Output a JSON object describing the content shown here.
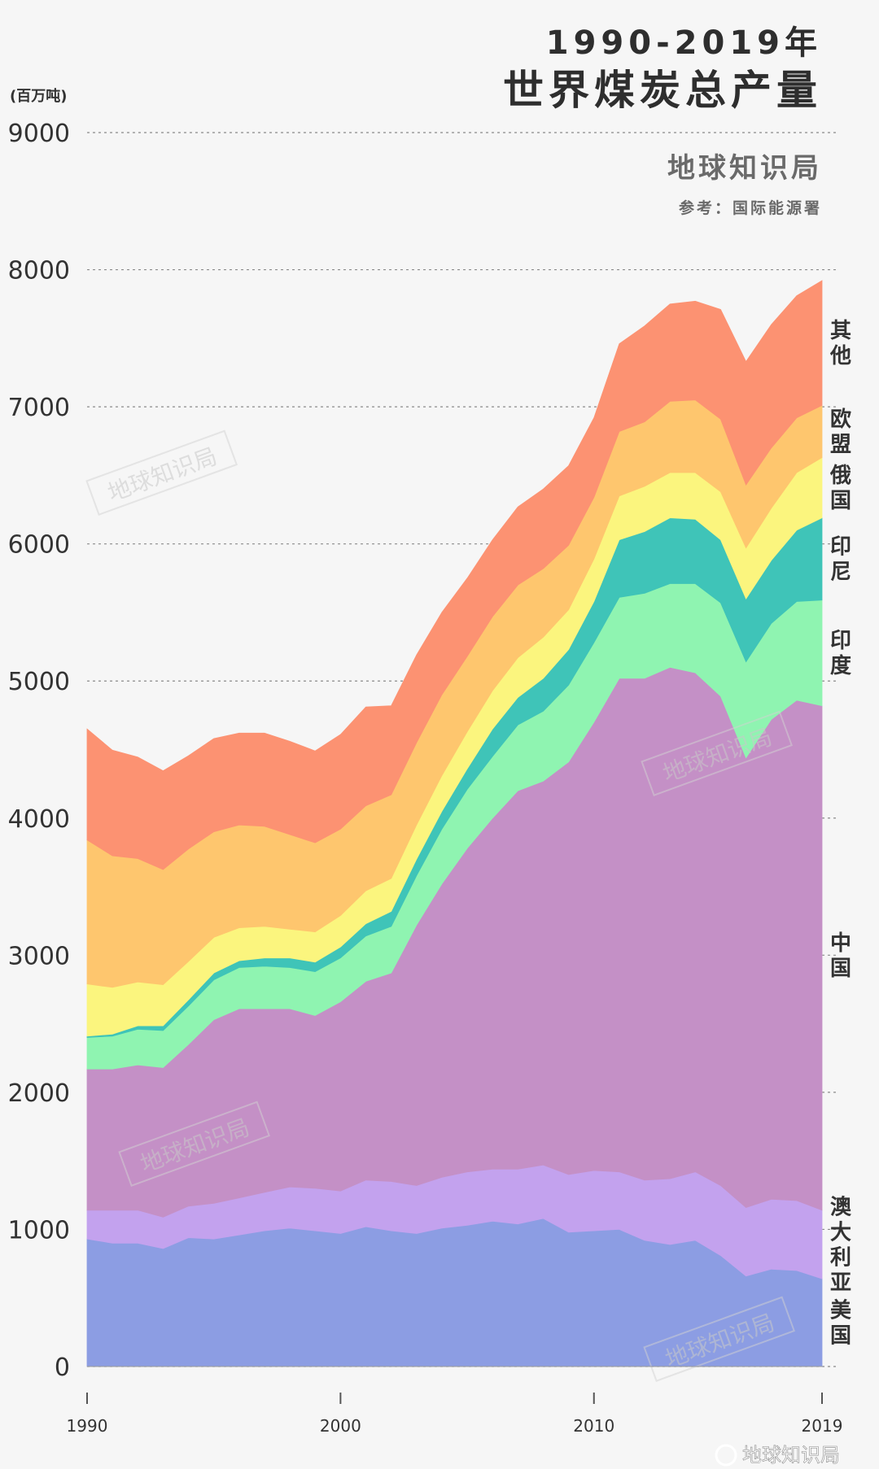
{
  "chart_data": {
    "type": "area",
    "stacked": true,
    "title_line1": "1990-2019年",
    "title_line2": "世界煤炭总产量",
    "source": "地球知识局",
    "reference": "参考：国际能源署",
    "ylabel": "(百万吨)",
    "xlabel": "",
    "ylim": [
      0,
      9000
    ],
    "yticks": [
      "0",
      "1000",
      "2000",
      "3000",
      "4000",
      "5000",
      "6000",
      "7000",
      "8000",
      "9000"
    ],
    "xticks": [
      {
        "value": 1990,
        "label": "1990"
      },
      {
        "value": 2000,
        "label": "2000"
      },
      {
        "value": 2010,
        "label": "2010"
      },
      {
        "value": 2019,
        "label": "2019"
      }
    ],
    "grid": true,
    "x": [
      1990,
      1991,
      1992,
      1993,
      1994,
      1995,
      1996,
      1997,
      1998,
      1999,
      2000,
      2001,
      2002,
      2003,
      2004,
      2005,
      2006,
      2007,
      2008,
      2009,
      2010,
      2011,
      2012,
      2013,
      2014,
      2015,
      2016,
      2017,
      2018,
      2019
    ],
    "series": [
      {
        "name": "美国",
        "label": "美国",
        "color": "#8c9de3",
        "values": [
          930,
          900,
          900,
          860,
          940,
          930,
          960,
          990,
          1010,
          990,
          970,
          1020,
          990,
          970,
          1010,
          1030,
          1060,
          1040,
          1080,
          980,
          990,
          1000,
          920,
          890,
          920,
          810,
          660,
          710,
          700,
          640
        ]
      },
      {
        "name": "澳大利亚",
        "label": "澳大利亚",
        "color": "#c3a2ee",
        "values": [
          210,
          240,
          240,
          230,
          230,
          260,
          270,
          280,
          300,
          310,
          310,
          340,
          360,
          350,
          370,
          390,
          380,
          400,
          390,
          420,
          440,
          420,
          440,
          480,
          500,
          510,
          500,
          510,
          510,
          500
        ]
      },
      {
        "name": "中国",
        "label": "中国",
        "color": "#c490c6",
        "values": [
          1030,
          1030,
          1060,
          1090,
          1180,
          1340,
          1380,
          1340,
          1300,
          1260,
          1380,
          1450,
          1520,
          1900,
          2140,
          2360,
          2560,
          2760,
          2800,
          3010,
          3270,
          3600,
          3660,
          3730,
          3640,
          3570,
          3280,
          3500,
          3650,
          3680
        ]
      },
      {
        "name": "印度",
        "label": "印度",
        "color": "#8ff4b1",
        "values": [
          230,
          240,
          260,
          270,
          280,
          290,
          300,
          310,
          300,
          320,
          320,
          330,
          340,
          360,
          400,
          430,
          450,
          480,
          510,
          560,
          580,
          590,
          620,
          610,
          650,
          680,
          700,
          700,
          720,
          770
        ]
      },
      {
        "name": "印尼",
        "label": "印尼",
        "color": "#3fc4b8",
        "values": [
          10,
          15,
          25,
          35,
          45,
          50,
          50,
          60,
          70,
          70,
          80,
          90,
          110,
          120,
          130,
          150,
          200,
          200,
          240,
          260,
          300,
          420,
          450,
          480,
          470,
          460,
          460,
          460,
          520,
          600
        ]
      },
      {
        "name": "俄国",
        "label": "俄国",
        "color": "#fbf57e",
        "values": [
          380,
          340,
          320,
          300,
          280,
          260,
          240,
          230,
          210,
          220,
          230,
          240,
          240,
          250,
          260,
          270,
          280,
          290,
          300,
          290,
          310,
          320,
          330,
          330,
          340,
          350,
          370,
          380,
          420,
          440
        ]
      },
      {
        "name": "欧盟",
        "label": "欧盟",
        "color": "#fec66e",
        "values": [
          1050,
          960,
          900,
          840,
          820,
          770,
          750,
          730,
          690,
          650,
          630,
          620,
          610,
          600,
          590,
          550,
          540,
          530,
          500,
          470,
          450,
          470,
          470,
          520,
          530,
          530,
          460,
          440,
          400,
          380
        ]
      },
      {
        "name": "其他",
        "label": "其他",
        "color": "#fc9272",
        "values": [
          810,
          770,
          740,
          720,
          680,
          680,
          670,
          680,
          680,
          670,
          690,
          720,
          650,
          640,
          600,
          570,
          560,
          570,
          580,
          580,
          580,
          640,
          700,
          710,
          720,
          800,
          900,
          900,
          890,
          910
        ]
      }
    ]
  },
  "watermarks": [
    "地球知识局",
    "地球知识局",
    "地球知识局",
    "地球知识局"
  ],
  "footer_mark": "地球知识局"
}
